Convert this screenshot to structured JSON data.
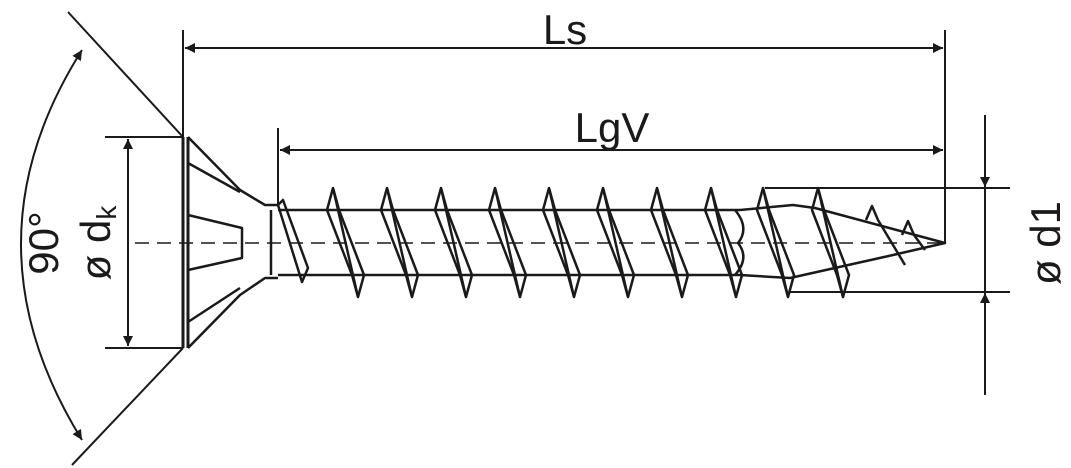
{
  "diagram": {
    "labels": {
      "ls": "Ls",
      "lgv": "LgV",
      "angle": "90°",
      "head_diameter": "ø d",
      "head_diameter_sub": "k",
      "thread_diameter": "ø d1"
    },
    "colors": {
      "line": "#1a1a1a",
      "background": "#ffffff"
    }
  }
}
